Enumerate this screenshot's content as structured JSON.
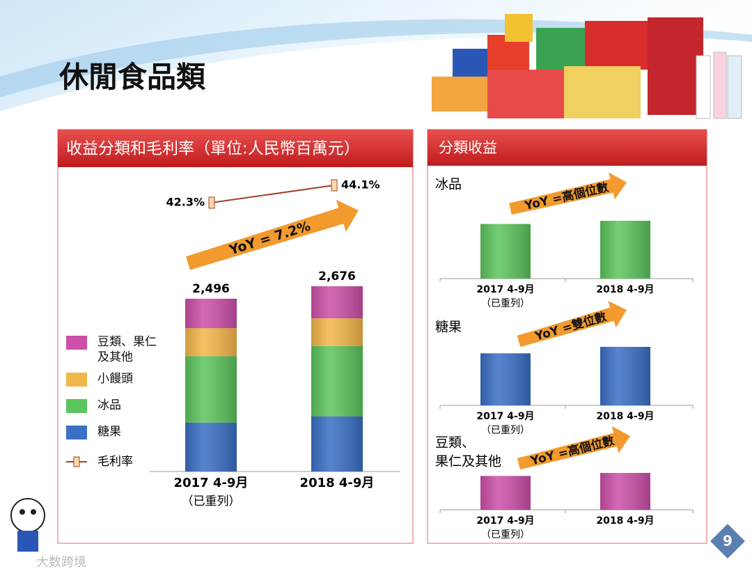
{
  "header": {
    "title": "休閒食品類"
  },
  "right_panel": {
    "title": "分類收益"
  },
  "page_number": "9",
  "watermark": "大数跨境",
  "chart_data": [
    {
      "type": "bar",
      "stacked": true,
      "title": "收益分類和毛利率（單位:人民幣百萬元）",
      "categories": [
        "2017 4-9月",
        "2018 4-9月"
      ],
      "category_notes": [
        "（已重列）",
        null
      ],
      "series": [
        {
          "name": "糖果",
          "color": "#3a6fc4",
          "values": [
            707,
            795
          ]
        },
        {
          "name": "冰品",
          "color": "#5cc45c",
          "values": [
            960,
            1016
          ]
        },
        {
          "name": "小饅頭",
          "color": "#f3b64a",
          "values": [
            404,
            402
          ]
        },
        {
          "name": "豆類、果仁及其他",
          "color": "#cc4fa8",
          "values": [
            425,
            463
          ]
        }
      ],
      "totals": [
        2496,
        2676
      ],
      "total_labels": [
        "2,496",
        "2,676"
      ],
      "line_series": {
        "name": "毛利率",
        "color": "#a0402a",
        "values": [
          42.3,
          44.1
        ],
        "value_labels": [
          "42.3%",
          "44.1%"
        ]
      },
      "annotation": "YoY = 7.2%",
      "arrow_color": "#f29a2e"
    },
    {
      "type": "bar",
      "title_lines": [
        "冰品"
      ],
      "categories": [
        "2017 4-9月",
        "2018 4-9月"
      ],
      "category_notes": [
        "（已重列）",
        null
      ],
      "values": [
        960,
        1016
      ],
      "color": "#5cc45c",
      "annotation": "YoY =高個位數",
      "arrow_color": "#f29a2e"
    },
    {
      "type": "bar",
      "title_lines": [
        "糖果"
      ],
      "categories": [
        "2017 4-9月",
        "2018 4-9月"
      ],
      "category_notes": [
        "（已重列）",
        null
      ],
      "values": [
        707,
        795
      ],
      "color": "#3a6fc4",
      "annotation": "YoY =雙位數",
      "arrow_color": "#f29a2e"
    },
    {
      "type": "bar",
      "title_lines": [
        "豆類、",
        "果仁及其他"
      ],
      "categories": [
        "2017 4-9月",
        "2018 4-9月"
      ],
      "category_notes": [
        "（已重列）",
        null
      ],
      "values": [
        425,
        463
      ],
      "color": "#cc4fa8",
      "annotation": "YoY =高個位數",
      "arrow_color": "#f29a2e"
    }
  ]
}
